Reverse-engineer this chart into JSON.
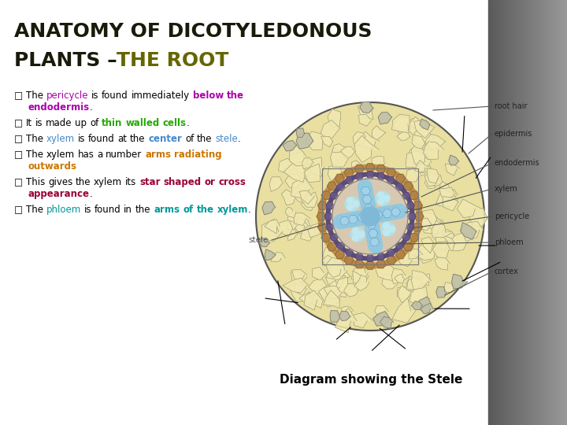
{
  "bg_color": "#ffffff",
  "right_bg_color_top": "#555555",
  "right_bg_color_bottom": "#888888",
  "title_line1": "ANATOMY OF DICOTYLEDONOUS",
  "title_line2_black": "PLANTS – ",
  "title_line2_olive": "THE ROOT",
  "title_color": "#1a1a0a",
  "title_olive_color": "#666600",
  "title_fontsize": 18,
  "bullet_fontsize": 8.5,
  "caption_fontsize": 11,
  "bullets": [
    [
      [
        "square",
        "#000000",
        false
      ],
      [
        " The ",
        "#000000",
        false
      ],
      [
        "pericycle",
        "#aa00aa",
        false
      ],
      [
        " is found immediately ",
        "#000000",
        false
      ],
      [
        "below the endodermis",
        "#aa00aa",
        true
      ],
      [
        ".",
        "#000000",
        false
      ]
    ],
    [
      [
        "square",
        "#000000",
        false
      ],
      [
        " It is made up of ",
        "#000000",
        false
      ],
      [
        "thin walled cells",
        "#22aa00",
        true
      ],
      [
        ".",
        "#000000",
        false
      ]
    ],
    [
      [
        "square",
        "#000000",
        false
      ],
      [
        " The ",
        "#000000",
        false
      ],
      [
        "xylem",
        "#4488cc",
        false
      ],
      [
        " is found at the ",
        "#000000",
        false
      ],
      [
        "center",
        "#4488cc",
        true
      ],
      [
        " of the ",
        "#000000",
        false
      ],
      [
        "stele",
        "#4488cc",
        false
      ],
      [
        ".",
        "#000000",
        false
      ]
    ],
    [
      [
        "square",
        "#000000",
        false
      ],
      [
        " The xylem has a number ",
        "#000000",
        false
      ],
      [
        "arms radiating outwards",
        "#cc7700",
        true
      ]
    ],
    [
      [
        "square",
        "#000000",
        false
      ],
      [
        " This gives the xylem its ",
        "#000000",
        false
      ],
      [
        "star shaped or cross appearance",
        "#990033",
        true
      ],
      [
        ".",
        "#000000",
        false
      ]
    ],
    [
      [
        "square",
        "#000000",
        false
      ],
      [
        " The ",
        "#000000",
        false
      ],
      [
        "phloem",
        "#009999",
        false
      ],
      [
        " is found in the ",
        "#000000",
        false
      ],
      [
        "arms of the xylem",
        "#009999",
        true
      ],
      [
        ".",
        "#000000",
        false
      ]
    ]
  ],
  "diagram_caption": "Diagram showing the Stele",
  "diagram_labels": [
    "root hair",
    "epidermis",
    "endodermis",
    "xylem",
    "pericycle",
    "phloem",
    "cortex"
  ],
  "stele_label": "stele"
}
